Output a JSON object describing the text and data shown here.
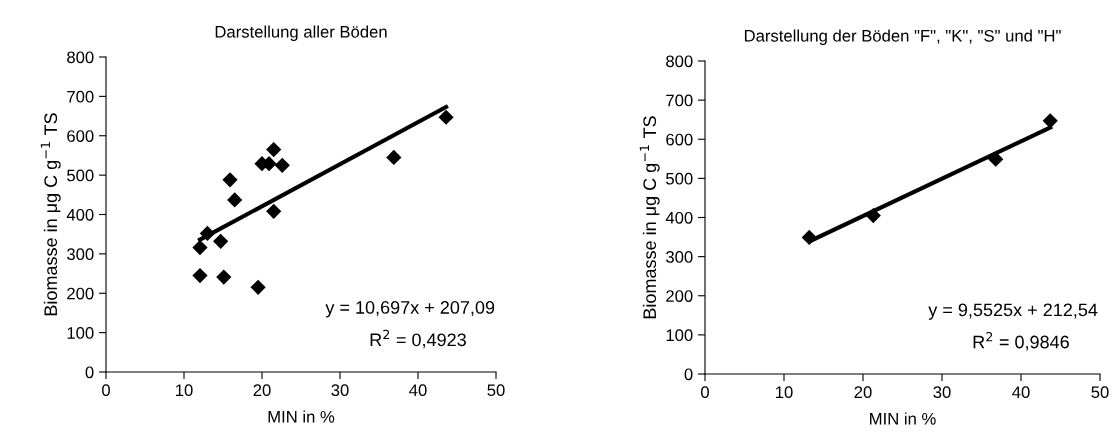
{
  "chart_data": [
    {
      "type": "scatter",
      "title": "Darstellung aller Böden",
      "xlabel": "MIN in %",
      "ylabel": "Biomasse in μg C g$^{−1}$ TS",
      "xlim": [
        0,
        50
      ],
      "xticks": [
        0,
        10,
        20,
        30,
        40,
        50
      ],
      "ylim": [
        0,
        800
      ],
      "yticks": [
        0,
        100,
        200,
        300,
        400,
        500,
        600,
        700,
        800
      ],
      "grid": false,
      "series": [
        {
          "marker": "diamond",
          "color": "#000000",
          "x": [
            12.05,
            12.05,
            13.0,
            14.7,
            15.1,
            15.9,
            16.5,
            19.5,
            20.0,
            20.9,
            21.5,
            21.5,
            22.6,
            36.9,
            43.6
          ],
          "values": [
            316,
            245,
            352,
            332,
            241,
            488,
            437,
            215,
            529,
            529,
            565,
            408,
            525,
            545,
            647
          ]
        },
        {
          "type": "line",
          "marker": "none",
          "color": "#000000",
          "line_style": "solid",
          "x": [
            12.05,
            43.6
          ],
          "values": [
            336,
            673
          ]
        }
      ],
      "annotations": [
        "y = 10,697x + 207,09",
        "R$^{2}$ = 0,4923"
      ]
    },
    {
      "type": "scatter",
      "title": "Darstellung der Böden \"F\", \"K\", \"S\" und \"H\"",
      "xlabel": "MIN in %",
      "ylabel": "Biomasse in μg C g$^{−1}$ TS",
      "xlim": [
        0,
        50
      ],
      "xticks": [
        0,
        10,
        20,
        30,
        40,
        50
      ],
      "ylim": [
        0,
        800
      ],
      "yticks": [
        0,
        100,
        200,
        300,
        400,
        500,
        600,
        700,
        800
      ],
      "grid": false,
      "series": [
        {
          "marker": "diamond",
          "color": "#000000",
          "x": [
            13.2,
            21.3,
            36.8,
            43.7
          ],
          "values": [
            349,
            405,
            549,
            647
          ]
        },
        {
          "type": "line",
          "marker": "none",
          "color": "#000000",
          "line_style": "solid",
          "x": [
            13.2,
            43.7
          ],
          "values": [
            339,
            630
          ]
        }
      ],
      "annotations": [
        "y = 9,5525x + 212,54",
        "R$^{2}$ = 0,9846"
      ]
    }
  ]
}
